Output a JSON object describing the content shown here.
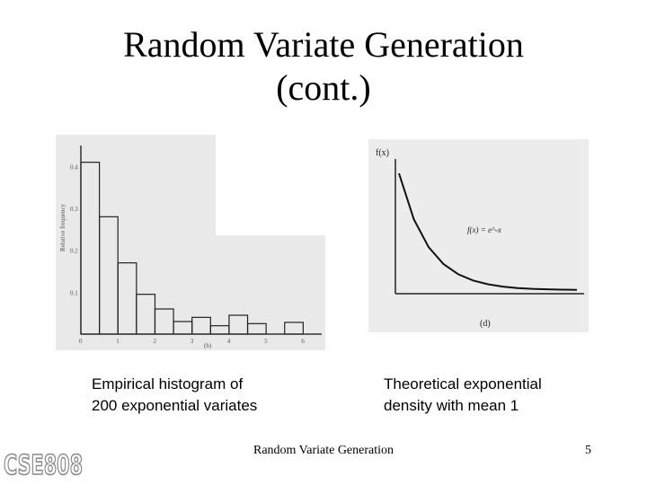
{
  "slide": {
    "title_line1": "Random Variate Generation",
    "title_line2": "(cont.)",
    "footer": "Random Variate Generation",
    "page_number": "5",
    "logo_text": "CSE808"
  },
  "left_figure": {
    "caption_line1": "Empirical histogram of",
    "caption_line2": "200 exponential variates",
    "y_axis_label": "Relative frequency",
    "y_tick_labels": [
      "0.4",
      "0.3",
      "0.2",
      "0.1"
    ],
    "x_tick_labels": [
      "0",
      "1",
      "2",
      "3",
      "4",
      "5",
      "6"
    ],
    "panel_label": "(b)"
  },
  "right_figure": {
    "caption_line1": "Theoretical exponential",
    "caption_line2": "density with mean 1",
    "y_axis_label": "f(x)",
    "curve_label": "f(x) = e^-x",
    "panel_label": "(d)"
  },
  "colors": {
    "scan_background": "#e9e9e9",
    "ink": "#222222"
  },
  "chart_data": [
    {
      "type": "bar",
      "categories": [
        "0-0.5",
        "0.5-1",
        "1-1.5",
        "1.5-2",
        "2-2.5",
        "2.5-3",
        "3-3.5",
        "3.5-4",
        "4-4.5",
        "4.5-5",
        "5-5.5",
        "5.5-6"
      ],
      "values": [
        0.41,
        0.28,
        0.17,
        0.095,
        0.06,
        0.03,
        0.04,
        0.02,
        0.045,
        0.025,
        0.0,
        0.028
      ],
      "ylim": [
        0,
        0.45
      ],
      "xlim": [
        0,
        6.5
      ],
      "grid": false
    },
    {
      "type": "line",
      "x": [
        0,
        0.5,
        1,
        1.5,
        2,
        2.5,
        3,
        3.5,
        4,
        4.5,
        5,
        5.5,
        6
      ],
      "y": [
        1.0,
        0.607,
        0.368,
        0.223,
        0.135,
        0.082,
        0.05,
        0.03,
        0.018,
        0.011,
        0.007,
        0.004,
        0.002
      ],
      "grid": false
    }
  ]
}
